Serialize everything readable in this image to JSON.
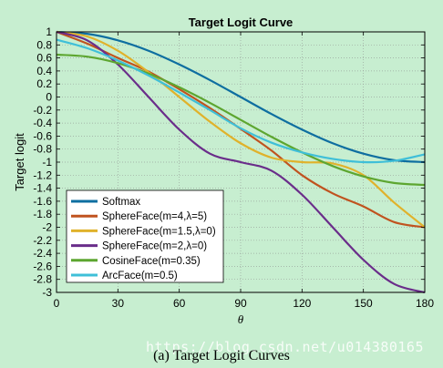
{
  "chart_data": {
    "type": "line",
    "title": "Target Logit Curve",
    "xlabel": "θ",
    "ylabel": "Target logit",
    "xlim": [
      0,
      180
    ],
    "ylim": [
      -3,
      1
    ],
    "xticks": [
      0,
      30,
      60,
      90,
      120,
      150,
      180
    ],
    "yticks": [
      1,
      0.8,
      0.6,
      0.4,
      0.2,
      0,
      -0.2,
      -0.4,
      -0.6,
      -0.8,
      -1,
      -1.2,
      -1.4,
      -1.6,
      -1.8,
      -2,
      -2.2,
      -2.4,
      -2.6,
      -2.8,
      -3
    ],
    "grid": true,
    "legend_position": "lower-left",
    "x": [
      0,
      15,
      30,
      45,
      60,
      75,
      90,
      105,
      120,
      135,
      150,
      165,
      180
    ],
    "series": [
      {
        "name": "Softmax",
        "color": "#0e6ea0",
        "values": [
          1.0,
          0.97,
          0.87,
          0.71,
          0.5,
          0.26,
          0.0,
          -0.26,
          -0.5,
          -0.71,
          -0.87,
          -0.97,
          -1.0
        ]
      },
      {
        "name": "SphereFace(m=4,λ=5)",
        "color": "#c0531f",
        "values": [
          1.0,
          0.82,
          0.6,
          0.39,
          0.12,
          -0.17,
          -0.49,
          -0.82,
          -1.2,
          -1.48,
          -1.68,
          -1.92,
          -2.0
        ]
      },
      {
        "name": "SphereFace(m=1.5,λ=0)",
        "color": "#e0b22b",
        "values": [
          1.0,
          0.93,
          0.71,
          0.38,
          0.0,
          -0.38,
          -0.71,
          -0.93,
          -1.0,
          -1.02,
          -1.2,
          -1.62,
          -2.0
        ]
      },
      {
        "name": "SphereFace(m=2,λ=0)",
        "color": "#6a2d8a",
        "values": [
          1.0,
          0.87,
          0.5,
          0.0,
          -0.5,
          -0.87,
          -1.0,
          -1.13,
          -1.5,
          -2.0,
          -2.5,
          -2.87,
          -3.0
        ]
      },
      {
        "name": "CosineFace(m=0.35)",
        "color": "#5da630",
        "values": [
          0.65,
          0.62,
          0.52,
          0.36,
          0.15,
          -0.09,
          -0.35,
          -0.61,
          -0.85,
          -1.06,
          -1.22,
          -1.32,
          -1.35
        ]
      },
      {
        "name": "ArcFace(m=0.5)",
        "color": "#3fbfd8",
        "values": [
          0.88,
          0.75,
          0.56,
          0.33,
          0.07,
          -0.2,
          -0.48,
          -0.7,
          -0.85,
          -0.95,
          -1.0,
          -0.98,
          -0.88
        ]
      }
    ]
  },
  "watermark": "https://blog.csdn.net/u014380165",
  "caption": "(a)  Target Logit Curves"
}
